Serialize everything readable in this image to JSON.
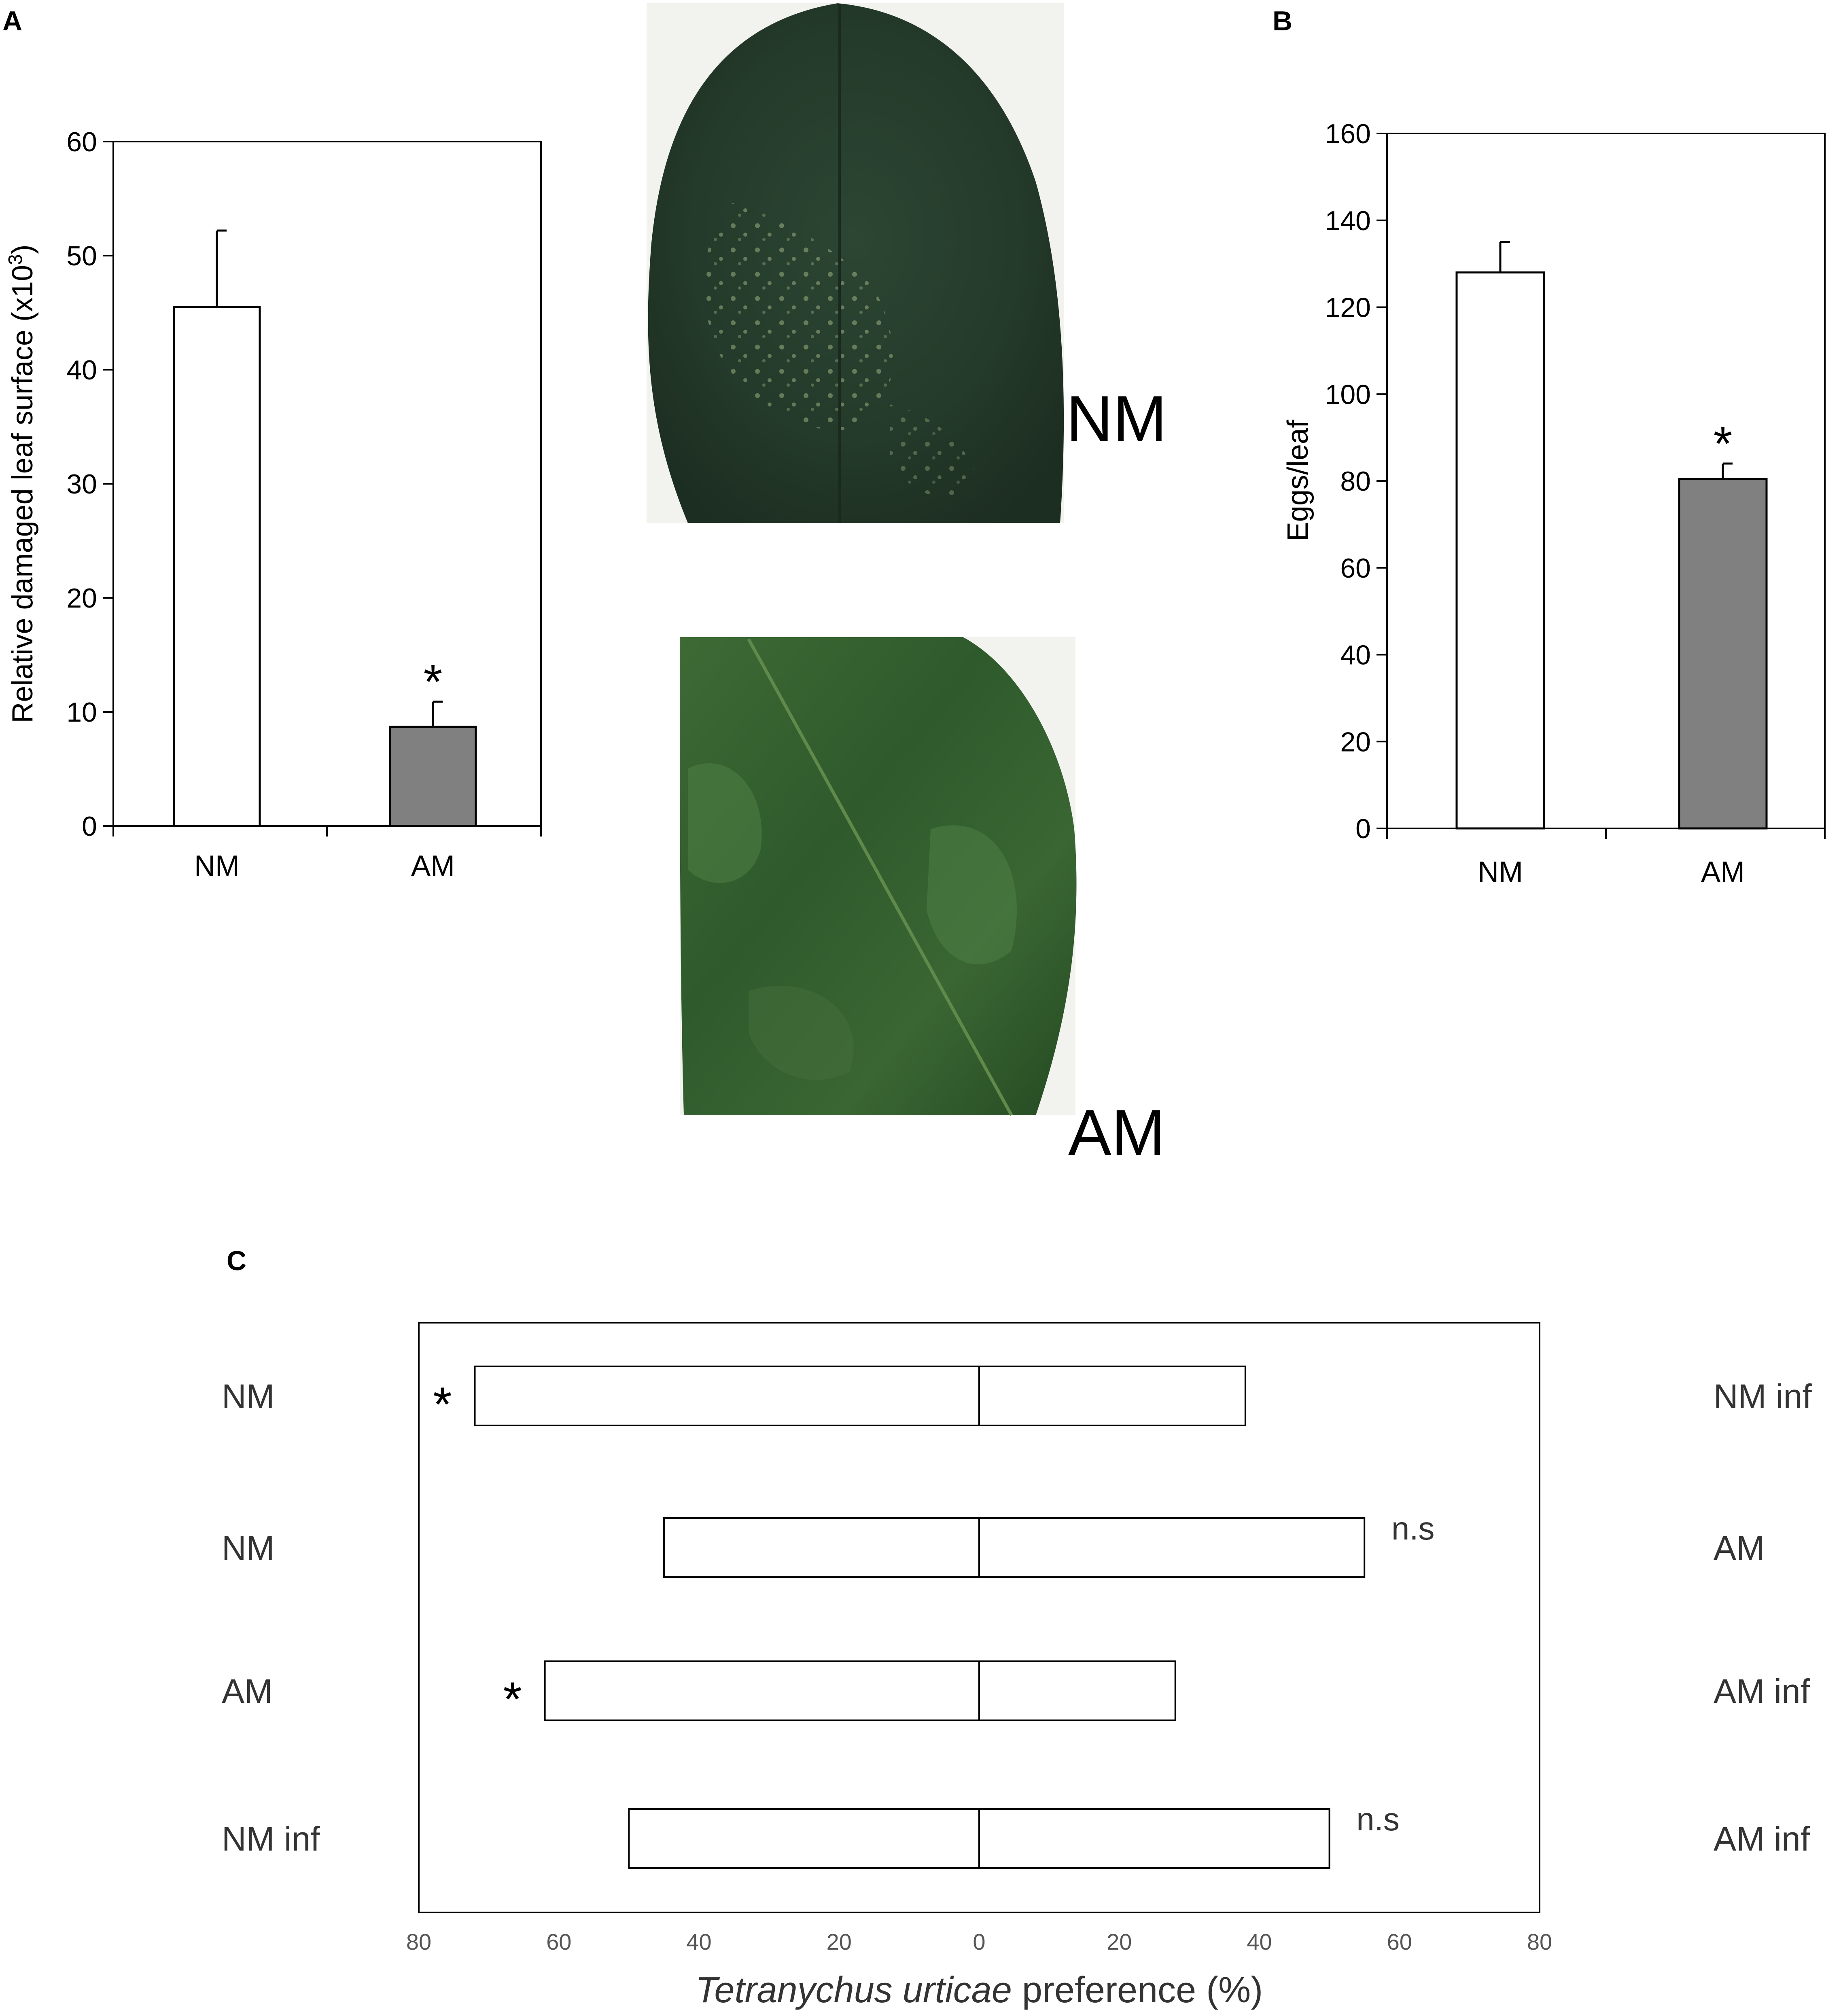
{
  "panels": {
    "a": "A",
    "b": "B",
    "c": "C"
  },
  "photos": {
    "top_label": "NM",
    "bottom_label": "AM"
  },
  "chart_data": [
    {
      "type": "bar",
      "panel": "A",
      "categories": [
        "NM",
        "AM"
      ],
      "values": [
        45.5,
        8.7
      ],
      "errors": [
        6.7,
        2.2
      ],
      "significance": [
        "",
        "*"
      ],
      "ylabel_main": "Relative damaged leaf surface (x10",
      "ylabel_sup": "3",
      "ylabel_end": ")",
      "ylim": [
        0,
        60
      ],
      "yticks": [
        0,
        10,
        20,
        30,
        40,
        50,
        60
      ],
      "colors": [
        "#ffffff",
        "#808080"
      ]
    },
    {
      "type": "bar",
      "panel": "B",
      "categories": [
        "NM",
        "AM"
      ],
      "values": [
        128,
        80.5
      ],
      "errors": [
        7,
        3.5
      ],
      "significance": [
        "",
        "*"
      ],
      "ylabel": "Eggs/leaf",
      "ylim": [
        0,
        160
      ],
      "yticks": [
        0,
        20,
        40,
        60,
        80,
        100,
        120,
        140,
        160
      ],
      "colors": [
        "#ffffff",
        "#808080"
      ]
    },
    {
      "type": "bar",
      "panel": "C",
      "orientation": "horizontal-diverging",
      "xlabel_italic": "Tetranychus urticae",
      "xlabel_rest": " preference (%)",
      "xlim": [
        -80,
        80
      ],
      "xticks": [
        "80",
        "60",
        "40",
        "20",
        "0",
        "20",
        "40",
        "60",
        "80"
      ],
      "rows": [
        {
          "left_label": "NM",
          "right_label": "NM inf",
          "left_value": 72,
          "right_value": 38,
          "note": "*",
          "note_side": "left"
        },
        {
          "left_label": "NM",
          "right_label": "AM",
          "left_value": 45,
          "right_value": 55,
          "note": "n.s",
          "note_side": "right"
        },
        {
          "left_label": "AM",
          "right_label": "AM inf",
          "left_value": 62,
          "right_value": 28,
          "note": "*",
          "note_side": "left"
        },
        {
          "left_label": "NM inf",
          "right_label": "AM inf",
          "left_value": 50,
          "right_value": 50,
          "note": "n.s",
          "note_side": "right"
        }
      ]
    }
  ]
}
